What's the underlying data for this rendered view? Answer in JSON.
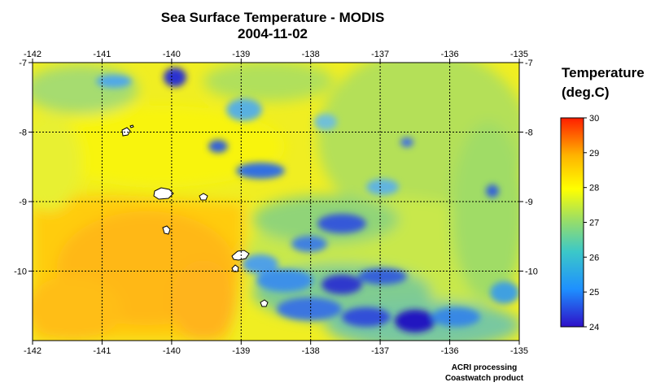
{
  "title": "Sea Surface Temperature - MODIS",
  "date": "2004-11-02",
  "colorbar": {
    "title_line1": "Temperature",
    "title_line2": "(deg.C)",
    "range": [
      24,
      30
    ],
    "ticks": [
      "30",
      "29",
      "28",
      "27",
      "26",
      "25",
      "24"
    ],
    "colors": [
      "#2e10c8",
      "#1e90ff",
      "#3cc8c8",
      "#a0e060",
      "#ffff00",
      "#ffb400",
      "#ff1e00"
    ]
  },
  "map": {
    "lon_range": [
      -142,
      -135
    ],
    "lat_range": [
      -11,
      -7
    ],
    "lon_ticks": [
      "-142",
      "-141",
      "-140",
      "-139",
      "-138",
      "-137",
      "-136",
      "-135"
    ],
    "lat_ticks_left": [
      "-7",
      "-8",
      "-9",
      "-10"
    ],
    "lat_ticks_right": [
      "-7",
      "-8",
      "-9",
      "-10"
    ],
    "gridlines": true,
    "land_color": "#ffffff"
  },
  "credits": {
    "line1": "ACRI processing",
    "line2": "Coastwatch product"
  }
}
